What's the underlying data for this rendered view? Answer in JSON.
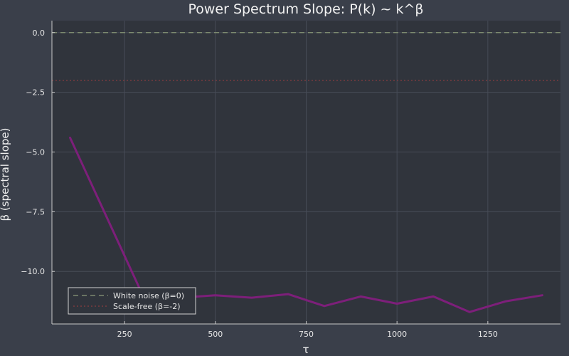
{
  "chart_data": {
    "type": "line",
    "title": "Power Spectrum Slope: P(k) ~ k^β",
    "xlabel": "τ",
    "ylabel": "β (spectral slope)",
    "xlim": [
      50,
      1450
    ],
    "ylim": [
      -12.2,
      0.5
    ],
    "x_ticks": [
      250,
      500,
      750,
      1000,
      1250
    ],
    "y_ticks": [
      0,
      -2.5,
      -5,
      -7.5,
      -10
    ],
    "y_tick_labels": [
      "0.0",
      "−2.5",
      "−5.0",
      "−7.5",
      "−10.0"
    ],
    "x_tick_labels": [
      "250",
      "500",
      "750",
      "1000",
      "1250"
    ],
    "grid": true,
    "legend_position": "bottom-left",
    "series": [
      {
        "color": "#7d1f7a",
        "x": [
          100,
          300,
          400,
          500,
          600,
          700,
          800,
          900,
          1000,
          1100,
          1200,
          1300,
          1400
        ],
        "y": [
          -4.4,
          -11.0,
          -11.1,
          -11.0,
          -11.1,
          -10.95,
          -11.45,
          -11.05,
          -11.35,
          -11.05,
          -11.7,
          -11.25,
          -11.0
        ]
      }
    ],
    "reference_lines": [
      {
        "name": "White noise (β=0)",
        "y": 0,
        "color": "#7d8a70",
        "dash": "dashed"
      },
      {
        "name": "Scale-free (β=-2)",
        "y": -2,
        "color": "#7a3b3e",
        "dash": "dotted"
      }
    ]
  },
  "colors": {
    "background": "#3a3f4a",
    "plot_background": "#30343c",
    "grid": "#474c57",
    "axis": "#c8c8c8"
  }
}
